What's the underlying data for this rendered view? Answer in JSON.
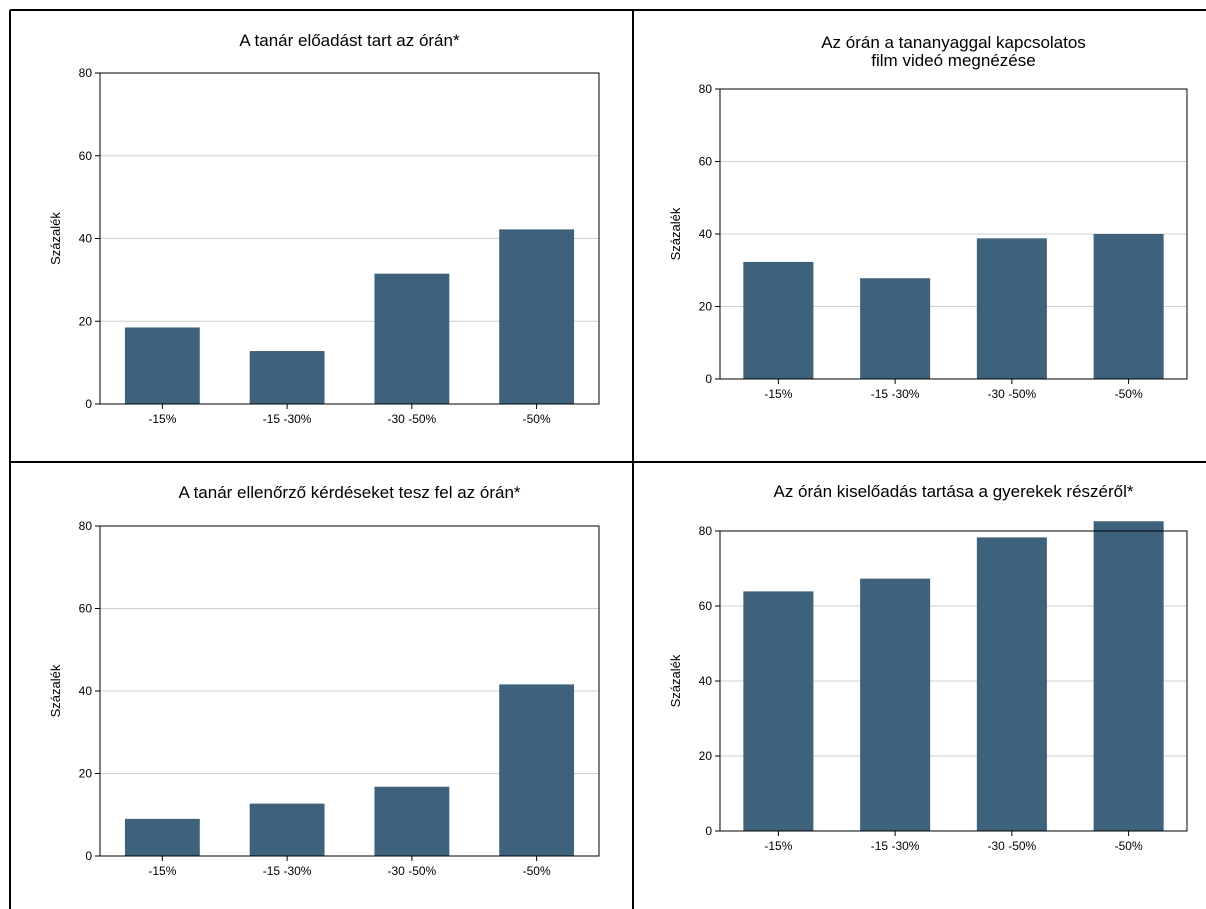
{
  "colors": {
    "bar": "#3e627c",
    "grid": "#cfcfcf"
  },
  "chart_data": [
    {
      "type": "bar",
      "title": "A tanár előadást tart az órán*",
      "categories": [
        "-15%",
        "-15 -30%",
        "-30 -50%",
        "-50%"
      ],
      "values": [
        18.5,
        12.8,
        31.5,
        42.2
      ],
      "ylabel": "Százalék",
      "ylim": [
        0,
        80
      ],
      "yticks": [
        "0",
        "20",
        "40",
        "60",
        "80"
      ],
      "grid": true
    },
    {
      "type": "bar",
      "title": "Az órán a tananyaggal kapcsolatos film videó megnézése",
      "title_lines": [
        "Az órán a tananyaggal kapcsolatos",
        "film videó megnézése"
      ],
      "categories": [
        "-15%",
        "-15 -30%",
        "-30 -50%",
        "-50%"
      ],
      "values": [
        32.3,
        27.8,
        38.8,
        40.0
      ],
      "ylabel": "Százalék",
      "ylim": [
        0,
        80
      ],
      "yticks": [
        "0",
        "20",
        "40",
        "60",
        "80"
      ],
      "grid": true
    },
    {
      "type": "bar",
      "title": "A tanár ellenőrző kérdéseket tesz fel az órán*",
      "categories": [
        "-15%",
        "-15 -30%",
        "-30 -50%",
        "-50%"
      ],
      "values": [
        9.0,
        12.7,
        16.8,
        41.6
      ],
      "ylabel": "Százalék",
      "ylim": [
        0,
        80
      ],
      "yticks": [
        "0",
        "20",
        "40",
        "60",
        "80"
      ],
      "grid": true
    },
    {
      "type": "bar",
      "title": "Az órán kiselőadás tartása a gyerekek részéről*",
      "categories": [
        "-15%",
        "-15 -30%",
        "-30 -50%",
        "-50%"
      ],
      "values": [
        63.9,
        67.3,
        78.3,
        82.6
      ],
      "ylabel": "Százalék",
      "ylim": [
        0,
        80
      ],
      "yticks": [
        "0",
        "20",
        "40",
        "60",
        "80"
      ],
      "grid": true
    }
  ]
}
